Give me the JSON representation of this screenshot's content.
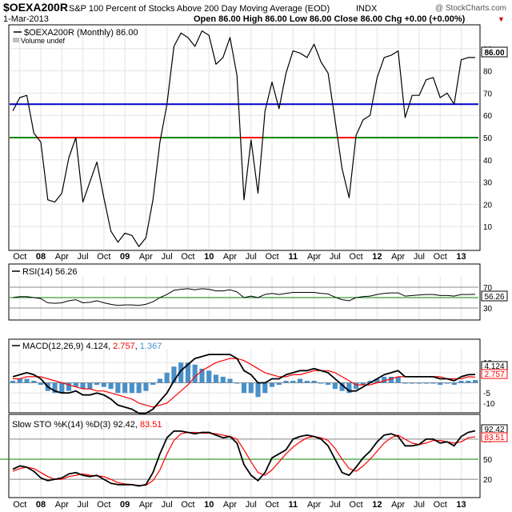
{
  "header": {
    "symbol": "$OEXA200R",
    "name": "S&P 100 Percent of Stocks Above 200 Day Moving Average (EOD)",
    "exchange": "INDX",
    "date": "1-Mar-2013",
    "quote": "Open 86.00  High 86.00  Low 86.00  Close 86.00  Chg +0.00 (+0.00%)",
    "quote_arrow": "▼",
    "credit": "@ StockCharts.com"
  },
  "main_panel": {
    "legend_symbol": "$OEXA200R (Monthly) 86.00",
    "legend_volume": "Volume undef",
    "last_value_label": "86.00",
    "y_ticks": [
      10,
      20,
      30,
      40,
      50,
      60,
      70,
      80,
      90
    ],
    "ylim": [
      0,
      100
    ],
    "lines": {
      "blue": 65,
      "green": 50
    },
    "colors": {
      "price": "#000000",
      "blue_line": "#0000cc",
      "green_line": "#008800",
      "red_segment": "#ff0000"
    }
  },
  "x_axis": {
    "labels": [
      "Oct",
      "08",
      "Apr",
      "Jul",
      "Oct",
      "09",
      "Apr",
      "Jul",
      "Oct",
      "10",
      "Apr",
      "Jul",
      "Oct",
      "11",
      "Apr",
      "Jul",
      "Oct",
      "12",
      "Apr",
      "Jul",
      "Oct",
      "13"
    ],
    "bold": [
      "08",
      "09",
      "10",
      "11",
      "12",
      "13"
    ]
  },
  "rsi_panel": {
    "legend": "RSI(14) 56.26",
    "ticks": [
      30,
      50,
      70
    ],
    "last_value_label": "56.26"
  },
  "macd_panel": {
    "legend_prefix": "MACD(12,26,9) 4.124, ",
    "legend_signal": "2.757",
    "legend_sep": ", ",
    "legend_hist": "1.367",
    "ticks": [
      10,
      5,
      -5,
      -10
    ],
    "last_macd_label": "4.124",
    "last_signal_label": "2.757",
    "colors": {
      "macd": "#000000",
      "signal": "#ff0000",
      "hist": "#4a90c8"
    }
  },
  "sto_panel": {
    "legend_prefix": "Slow STO %K(14) %D(3) 92.42, ",
    "legend_d": "83.51",
    "ticks": [
      20,
      50,
      80
    ],
    "last_k_label": "92.42",
    "last_d_label": "83.51"
  },
  "chart_data": [
    {
      "type": "line",
      "title": "$OEXA200R (Monthly)",
      "series": [
        {
          "name": "$OEXA200R",
          "values": [
            62,
            68,
            69,
            52,
            48,
            22,
            21,
            25,
            41,
            50,
            21,
            30,
            39,
            23,
            8,
            3,
            7,
            6,
            1,
            5,
            22,
            48,
            65,
            91,
            97,
            95,
            91,
            98,
            96,
            83,
            86,
            95,
            78,
            22,
            49,
            25,
            62,
            75,
            63,
            79,
            89,
            88,
            86,
            92,
            84,
            79,
            58,
            36,
            23,
            51,
            58,
            60,
            77,
            86,
            87,
            89,
            59,
            69,
            69,
            76,
            77,
            68,
            70,
            65,
            85,
            86,
            86
          ]
        }
      ],
      "x_start": "Sep 2007",
      "x_end": "Mar 2013",
      "ylim": [
        0,
        100
      ],
      "hlines": [
        65,
        50
      ]
    },
    {
      "type": "line",
      "title": "RSI(14)",
      "series": [
        {
          "name": "RSI(14)",
          "values": [
            50,
            52,
            52,
            50,
            48,
            40,
            39,
            40,
            44,
            46,
            40,
            41,
            44,
            40,
            37,
            35,
            36,
            36,
            35,
            37,
            42,
            50,
            56,
            64,
            66,
            67,
            65,
            67,
            66,
            63,
            63,
            65,
            61,
            50,
            53,
            50,
            56,
            58,
            56,
            58,
            60,
            60,
            60,
            60,
            58,
            57,
            51,
            46,
            44,
            50,
            52,
            53,
            56,
            58,
            59,
            59,
            53,
            54,
            55,
            56,
            56,
            54,
            54,
            53,
            56,
            56,
            56.26
          ]
        }
      ],
      "ticks": [
        30,
        50,
        70
      ]
    },
    {
      "type": "line",
      "title": "MACD(12,26,9)",
      "series": [
        {
          "name": "MACD",
          "values": [
            3,
            4,
            5,
            4,
            2,
            -2,
            -4,
            -5,
            -5,
            -4,
            -6,
            -6,
            -5,
            -6,
            -8,
            -11,
            -12,
            -13,
            -15,
            -15,
            -13,
            -9,
            -5,
            1,
            6,
            9,
            12,
            13,
            14,
            14,
            14,
            14,
            12,
            6,
            4,
            0,
            0,
            2,
            2,
            4,
            5,
            6,
            6,
            7,
            6,
            5,
            2,
            -1,
            -4,
            -4,
            -2,
            0,
            2,
            4,
            5,
            6,
            3,
            3,
            3,
            3,
            3,
            2,
            2,
            1,
            3,
            4,
            4.124
          ]
        },
        {
          "name": "Signal",
          "values": [
            2,
            2,
            3,
            3,
            3,
            2,
            1,
            0,
            -1,
            -2,
            -3,
            -3,
            -4,
            -4,
            -5,
            -6,
            -7,
            -8,
            -10,
            -11,
            -12,
            -11,
            -10,
            -7,
            -4,
            -1,
            3,
            6,
            8,
            10,
            11,
            12,
            12,
            11,
            9,
            7,
            5,
            4,
            3,
            3,
            4,
            4,
            5,
            6,
            6,
            6,
            5,
            3,
            1,
            -1,
            -1,
            -1,
            0,
            1,
            2,
            3,
            3,
            3,
            3,
            3,
            3,
            3,
            2,
            2,
            2,
            3,
            2.757
          ]
        },
        {
          "name": "Histogram",
          "values": [
            1,
            2,
            2,
            1,
            -1,
            -4,
            -5,
            -5,
            -4,
            -2,
            -3,
            -3,
            -1,
            -2,
            -3,
            -5,
            -5,
            -5,
            -5,
            -4,
            -1,
            2,
            5,
            8,
            10,
            10,
            9,
            7,
            6,
            4,
            3,
            2,
            0,
            -5,
            -5,
            -7,
            -5,
            -2,
            -1,
            1,
            1,
            2,
            1,
            1,
            0,
            -1,
            -3,
            -4,
            -5,
            -3,
            -1,
            1,
            2,
            3,
            3,
            3,
            0,
            0,
            0,
            0,
            0,
            -1,
            0,
            -1,
            1,
            1,
            1.367
          ]
        }
      ],
      "ticks": [
        10,
        5,
        -5,
        -10
      ]
    },
    {
      "type": "line",
      "title": "Slow STO %K(14) %D(3)",
      "series": [
        {
          "name": "%K",
          "values": [
            35,
            40,
            38,
            32,
            22,
            18,
            20,
            22,
            28,
            30,
            26,
            24,
            26,
            20,
            14,
            12,
            12,
            12,
            10,
            12,
            30,
            58,
            82,
            92,
            92,
            90,
            88,
            90,
            90,
            86,
            82,
            84,
            74,
            42,
            26,
            18,
            30,
            52,
            58,
            64,
            80,
            84,
            86,
            84,
            80,
            70,
            50,
            30,
            26,
            38,
            52,
            62,
            76,
            86,
            88,
            84,
            70,
            70,
            72,
            80,
            80,
            74,
            76,
            70,
            84,
            90,
            92.42
          ]
        },
        {
          "name": "%D",
          "values": [
            32,
            36,
            38,
            36,
            30,
            24,
            20,
            20,
            24,
            26,
            28,
            26,
            25,
            24,
            20,
            15,
            13,
            12,
            11,
            11,
            18,
            34,
            58,
            78,
            88,
            90,
            90,
            89,
            89,
            88,
            86,
            84,
            80,
            64,
            46,
            30,
            26,
            34,
            46,
            58,
            68,
            76,
            82,
            84,
            82,
            78,
            66,
            50,
            36,
            32,
            40,
            50,
            62,
            74,
            82,
            86,
            80,
            74,
            72,
            74,
            78,
            78,
            76,
            74,
            76,
            82,
            83.51
          ]
        }
      ],
      "ticks": [
        20,
        50,
        80
      ]
    }
  ]
}
